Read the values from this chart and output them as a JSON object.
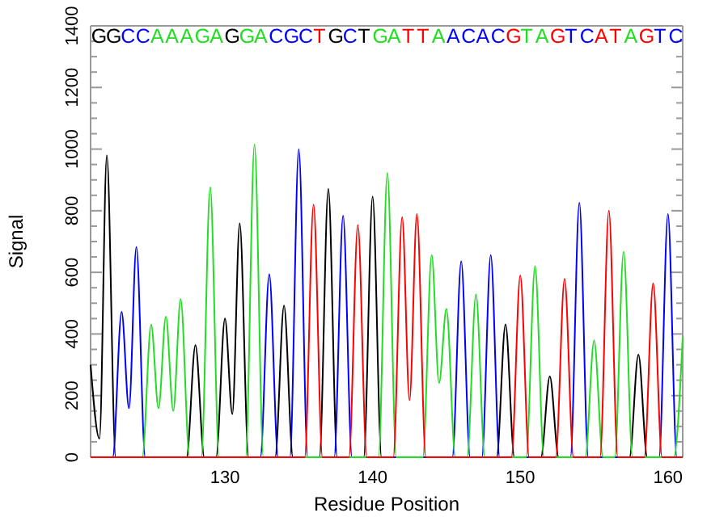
{
  "chart_data": {
    "type": "line",
    "xlabel": "Residue Position",
    "ylabel": "Signal",
    "xlim": [
      120.9,
      161
    ],
    "xticks": [
      130,
      140,
      150,
      160
    ],
    "annotations": [
      "GGCCAAAGAGGACGCTGCTGATTAACACGTAGTCATAGTC"
    ],
    "ylim": [
      0,
      1400
    ],
    "yticks": [
      0,
      {
        "value": 50,
        "label": null
      },
      {
        "value": 100,
        "label": null
      },
      {
        "value": 150,
        "label": null
      },
      200,
      {
        "value": 250,
        "label": null
      },
      {
        "value": 300,
        "label": null
      },
      {
        "value": 350,
        "label": null
      },
      400,
      {
        "value": 450,
        "label": null
      },
      {
        "value": 500,
        "label": null
      },
      {
        "value": 550,
        "label": null
      },
      600,
      {
        "value": 650,
        "label": null
      },
      {
        "value": 700,
        "label": null
      },
      {
        "value": 750,
        "label": null
      },
      800,
      {
        "value": 850,
        "label": null
      },
      {
        "value": 900,
        "label": null
      },
      {
        "value": 950,
        "label": null
      },
      1000,
      {
        "value": 1050,
        "label": null
      },
      {
        "value": 1100,
        "label": null
      },
      {
        "value": 1150,
        "label": null
      },
      1200,
      {
        "value": 1250,
        "label": null
      },
      {
        "value": 1300,
        "label": null
      },
      {
        "value": 1350,
        "label": null
      },
      1400
    ],
    "grid": false,
    "legend": false,
    "marker": "none",
    "line_style": "solid",
    "series": [
      {
        "color": "#000000",
        "x": [
          120.9,
          121.5,
          122,
          122.6,
          127.4,
          128,
          128.6,
          129.4,
          130,
          130.5,
          131,
          131.6,
          133.4,
          134,
          134.6,
          136.4,
          137,
          137.6,
          139.4,
          140,
          140.6,
          148.4,
          149,
          149.6,
          151.4,
          152,
          152.6,
          157.4,
          158,
          158.6,
          161
        ],
        "values": [
          300,
          60,
          980,
          0,
          0,
          364,
          0,
          0,
          450,
          140,
          759,
          0,
          0,
          492,
          0,
          0,
          871,
          0,
          0,
          846,
          0,
          0,
          431,
          0,
          0,
          262,
          0,
          0,
          333,
          0,
          0
        ]
      },
      {
        "color": "#0000ff",
        "x": [
          120.9,
          122.4,
          123,
          123.5,
          124,
          124.6,
          132.4,
          133,
          133.6,
          134.4,
          135,
          135.6,
          137.4,
          138,
          138.6,
          145.4,
          146,
          146.6,
          147.4,
          148,
          148.6,
          153.4,
          154,
          154.6,
          159.4,
          160,
          160.6,
          161
        ],
        "values": [
          0,
          0,
          472,
          159,
          682,
          0,
          0,
          594,
          0,
          0,
          1000,
          0,
          0,
          784,
          0,
          0,
          636,
          0,
          0,
          656,
          0,
          0,
          826,
          0,
          0,
          789,
          0,
          0
        ]
      },
      {
        "color": "#22dd22",
        "x": [
          120.9,
          124.4,
          125,
          125.5,
          126,
          126.5,
          127,
          127.6,
          128.4,
          129,
          129.6,
          131.4,
          132,
          132.6,
          140.4,
          141,
          141.6,
          143.4,
          144,
          144.5,
          145,
          145.6,
          146.4,
          147,
          147.6,
          150.4,
          151,
          151.6,
          154.4,
          155,
          155.6,
          156.4,
          157,
          157.6,
          160.4,
          161
        ],
        "values": [
          0,
          0,
          430,
          159,
          456,
          150,
          513,
          0,
          0,
          876,
          0,
          0,
          1015,
          0,
          0,
          923,
          0,
          0,
          656,
          241,
          482,
          0,
          0,
          528,
          0,
          0,
          620,
          0,
          0,
          379,
          0,
          0,
          667,
          0,
          0,
          390
        ]
      },
      {
        "color": "#ff0000",
        "x": [
          120.9,
          135.4,
          136,
          136.6,
          138.4,
          139,
          139.6,
          141.4,
          142,
          142.5,
          143,
          143.6,
          149.4,
          150,
          150.6,
          152.4,
          153,
          153.6,
          155.4,
          156,
          156.6,
          158.4,
          159,
          159.6,
          161
        ],
        "values": [
          0,
          0,
          820,
          0,
          0,
          754,
          0,
          0,
          779,
          185,
          789,
          0,
          0,
          590,
          0,
          0,
          579,
          0,
          0,
          800,
          0,
          0,
          564,
          0,
          0
        ]
      }
    ]
  }
}
